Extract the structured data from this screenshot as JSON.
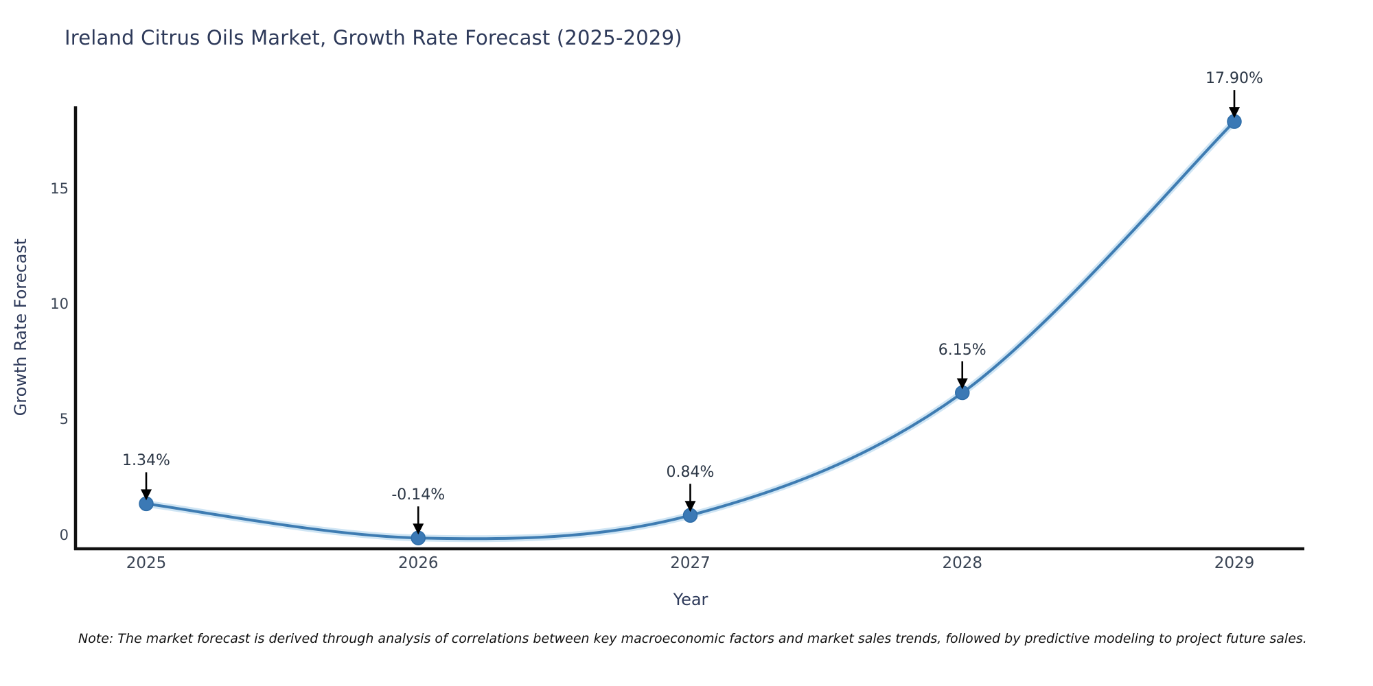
{
  "chart_data": {
    "type": "line",
    "title": "Ireland Citrus Oils Market, Growth Rate Forecast (2025-2029)",
    "xlabel": "Year",
    "ylabel": "Growth Rate Forecast",
    "categories": [
      "2025",
      "2026",
      "2027",
      "2028",
      "2029"
    ],
    "values": [
      1.34,
      -0.14,
      0.84,
      6.15,
      17.9
    ],
    "point_labels": [
      "1.34%",
      "-0.14%",
      "0.84%",
      "6.15%",
      "17.90%"
    ],
    "yticks": [
      0,
      5,
      10,
      15
    ],
    "ylim": [
      -0.7,
      19.1
    ],
    "grid": false,
    "legend": "none",
    "annotation_style": "value labels above points with downward arrows",
    "note": "Note: The market forecast is derived through analysis of correlations between key macroeconomic factors and market sales trends, followed by predictive modeling to project future sales.",
    "colors": {
      "line": "#3e7cb2",
      "line_halo": "#c3dff1",
      "marker": "#3b79b5",
      "marker_edge": "#2e6da8",
      "arrow": "#000000",
      "axis": "#111111",
      "title_text": "#2e3a5a",
      "tick_text": "#3a4454",
      "label_text": "#2b3645",
      "background": "#ffffff"
    }
  }
}
